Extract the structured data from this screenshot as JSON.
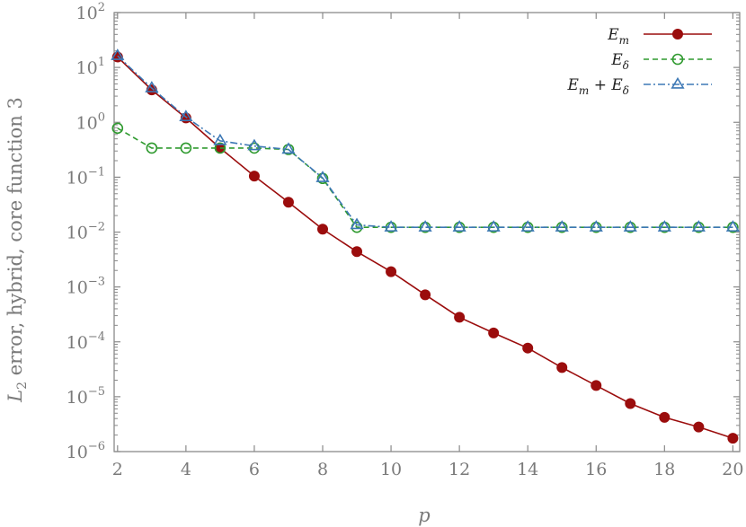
{
  "chart_data": {
    "type": "line",
    "title": "",
    "xlabel": "p",
    "ylabel": "L2 error, hybrid, core function 3",
    "xlim": [
      1.9,
      20.2
    ],
    "ylim": [
      1e-06,
      100
    ],
    "yscale": "log",
    "x_ticks": [
      2,
      4,
      6,
      8,
      10,
      12,
      14,
      16,
      18,
      20
    ],
    "y_ticks": [
      {
        "value": 1e-06,
        "base": "10",
        "exp": "−6"
      },
      {
        "value": 1e-05,
        "base": "10",
        "exp": "−5"
      },
      {
        "value": 0.0001,
        "base": "10",
        "exp": "−4"
      },
      {
        "value": 0.001,
        "base": "10",
        "exp": "−3"
      },
      {
        "value": 0.01,
        "base": "10",
        "exp": "−2"
      },
      {
        "value": 0.1,
        "base": "10",
        "exp": "−1"
      },
      {
        "value": 1,
        "base": "10",
        "exp": "0"
      },
      {
        "value": 10,
        "base": "10",
        "exp": "1"
      },
      {
        "value": 100,
        "base": "10",
        "exp": "2"
      }
    ],
    "grid": false,
    "legend_position": "top-right",
    "x": [
      2,
      3,
      4,
      5,
      6,
      7,
      8,
      9,
      10,
      11,
      12,
      13,
      14,
      15,
      16,
      17,
      18,
      19,
      20
    ],
    "series": [
      {
        "name": "E_m",
        "color": "#9b0d0d",
        "marker": "filled-circle",
        "linestyle": "solid",
        "values": [
          15.5,
          3.9,
          1.2,
          0.34,
          0.105,
          0.035,
          0.0113,
          0.0044,
          0.0019,
          0.00072,
          0.00028,
          0.000145,
          7.7e-05,
          3.4e-05,
          1.6e-05,
          7.5e-06,
          4.2e-06,
          2.8e-06,
          1.75e-06
        ]
      },
      {
        "name": "E_δ",
        "color": "#2f9a2f",
        "marker": "open-circle",
        "linestyle": "dashed",
        "values": [
          0.78,
          0.34,
          0.34,
          0.34,
          0.34,
          0.32,
          0.095,
          0.0122,
          0.0122,
          0.0122,
          0.0122,
          0.0122,
          0.0122,
          0.0122,
          0.0122,
          0.0122,
          0.0122,
          0.0122,
          0.0122
        ]
      },
      {
        "name": "E_m + E_δ",
        "color": "#3d78b5",
        "marker": "open-triangle",
        "linestyle": "dashdot",
        "values": [
          16.3,
          4.2,
          1.25,
          0.46,
          0.37,
          0.32,
          0.097,
          0.0135,
          0.0122,
          0.0122,
          0.0122,
          0.0122,
          0.0122,
          0.0122,
          0.0122,
          0.0122,
          0.0122,
          0.0122,
          0.0122
        ]
      }
    ],
    "legend": [
      {
        "main": "E",
        "sub": "m",
        "extra_main": "",
        "extra_sub": ""
      },
      {
        "main": "E",
        "sub": "δ",
        "extra_main": "",
        "extra_sub": ""
      },
      {
        "main": "E",
        "sub": "m",
        "extra_main": " + E",
        "extra_sub": "δ"
      }
    ]
  }
}
